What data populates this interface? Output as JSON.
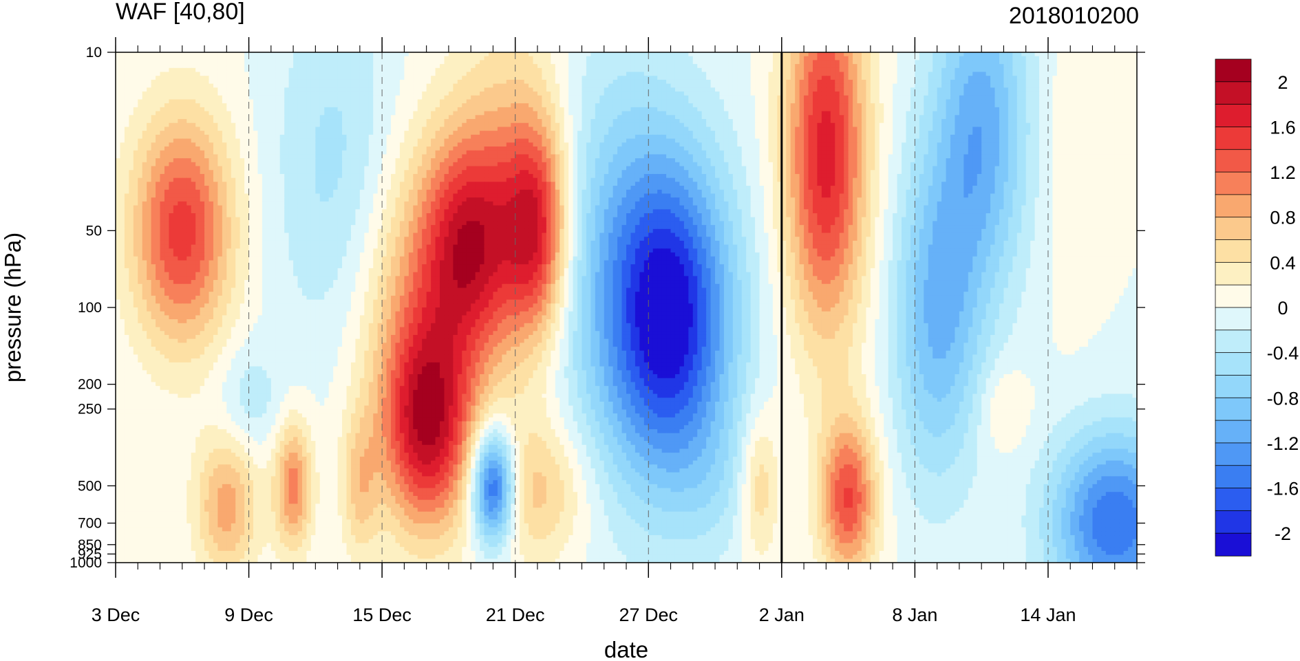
{
  "chart_data": {
    "type": "heatmap",
    "title": "WAF [40,80]",
    "subtitle_right": "2018010200",
    "xlabel": "date",
    "ylabel": "pressure (hPa)",
    "y_scale": "log",
    "y_reversed": true,
    "ylim": [
      1000,
      10
    ],
    "xlim": [
      "2017-12-03",
      "2018-01-18"
    ],
    "x_tick_labels": [
      "3 Dec",
      "9 Dec",
      "15 Dec",
      "21 Dec",
      "27 Dec",
      "2 Jan",
      "8 Jan",
      "14 Jan"
    ],
    "x_tick_dates": [
      "2017-12-03",
      "2017-12-09",
      "2017-12-15",
      "2017-12-21",
      "2017-12-27",
      "2018-01-02",
      "2018-01-08",
      "2018-01-14"
    ],
    "y_ticks": [
      10,
      50,
      100,
      200,
      250,
      500,
      700,
      850,
      925,
      1000
    ],
    "y_tick_labels": [
      "10",
      "50",
      "100",
      "200",
      "250",
      "500",
      "700",
      "850",
      "925",
      "1000"
    ],
    "vertical_marker_date": "2018-01-02",
    "colorbar": {
      "levels": [
        -2.2,
        -2.0,
        -1.8,
        -1.6,
        -1.4,
        -1.2,
        -1.0,
        -0.8,
        -0.6,
        -0.4,
        -0.2,
        0,
        0.2,
        0.4,
        0.6,
        0.8,
        1.0,
        1.2,
        1.4,
        1.6,
        1.8,
        2.0,
        2.2
      ],
      "colors": [
        "#1a0fd6",
        "#2036e6",
        "#2b5df0",
        "#3a7ef2",
        "#4f98f5",
        "#66b1f8",
        "#7ec8fa",
        "#93d7fa",
        "#a7e3fa",
        "#bfedfa",
        "#dff7fb",
        "#fffbe9",
        "#fdf0c2",
        "#fde0a4",
        "#fbc98c",
        "#f9a86f",
        "#f7805a",
        "#f25947",
        "#ec3a38",
        "#de1d2e",
        "#c41026",
        "#a5001f"
      ],
      "tick_labels": [
        "2",
        "1.6",
        "1.2",
        "0.8",
        "0.4",
        "0",
        "-0.4",
        "-0.8",
        "-1.2",
        "-1.6",
        "-2"
      ],
      "tick_values": [
        2.0,
        1.6,
        1.2,
        0.8,
        0.4,
        0,
        -0.4,
        -0.8,
        -1.2,
        -1.6,
        -2.0
      ]
    },
    "features": [
      {
        "date": "2017-12-06",
        "p": 50,
        "sx": 1.6,
        "sy": 0.32,
        "amp": 1.5
      },
      {
        "date": "2017-12-08",
        "p": 600,
        "sx": 1.0,
        "sy": 0.2,
        "amp": 0.9
      },
      {
        "date": "2017-12-11",
        "p": 500,
        "sx": 0.6,
        "sy": 0.18,
        "amp": 1.1
      },
      {
        "date": "2017-12-14",
        "p": 500,
        "sx": 0.6,
        "sy": 0.2,
        "amp": 0.6
      },
      {
        "date": "2017-12-17",
        "p": 300,
        "sx": 1.4,
        "sy": 0.28,
        "amp": 1.6
      },
      {
        "date": "2017-12-17",
        "p": 100,
        "sx": 2.2,
        "sy": 0.45,
        "amp": 0.9
      },
      {
        "date": "2017-12-19",
        "p": 55,
        "sx": 1.5,
        "sy": 0.3,
        "amp": 1.3
      },
      {
        "date": "2017-12-22",
        "p": 50,
        "sx": 1.0,
        "sy": 0.3,
        "amp": 1.4
      },
      {
        "date": "2017-12-21",
        "p": 30,
        "sx": 1.8,
        "sy": 0.5,
        "amp": 0.6
      },
      {
        "date": "2017-12-22",
        "p": 520,
        "sx": 1.6,
        "sy": 0.2,
        "amp": 0.7
      },
      {
        "date": "2017-12-20",
        "p": 500,
        "sx": 0.7,
        "sy": 0.16,
        "amp": -2.0
      },
      {
        "date": "2017-12-28",
        "p": 110,
        "sx": 2.0,
        "sy": 0.45,
        "amp": -2.1
      },
      {
        "date": "2017-12-25",
        "p": 60,
        "sx": 2.2,
        "sy": 0.6,
        "amp": -0.6
      },
      {
        "date": "2017-12-13",
        "p": 30,
        "sx": 2.0,
        "sy": 0.5,
        "amp": -0.5
      },
      {
        "date": "2018-01-04",
        "p": 25,
        "sx": 1.3,
        "sy": 0.5,
        "amp": 1.7
      },
      {
        "date": "2018-01-05",
        "p": 560,
        "sx": 0.9,
        "sy": 0.22,
        "amp": 1.4
      },
      {
        "date": "2018-01-01",
        "p": 500,
        "sx": 0.6,
        "sy": 0.2,
        "amp": 0.6
      },
      {
        "date": "2018-01-09",
        "p": 110,
        "sx": 1.4,
        "sy": 0.45,
        "amp": -1.0
      },
      {
        "date": "2018-01-11",
        "p": 20,
        "sx": 1.5,
        "sy": 0.45,
        "amp": -1.1
      },
      {
        "date": "2018-01-17",
        "p": 700,
        "sx": 2.0,
        "sy": 0.25,
        "amp": -1.6
      },
      {
        "date": "2018-01-15",
        "p": 25,
        "sx": 0.9,
        "sy": 0.45,
        "amp": 0.15
      },
      {
        "date": "2017-12-09",
        "p": 230,
        "sx": 1.0,
        "sy": 0.15,
        "amp": -0.35
      },
      {
        "date": "2018-01-12",
        "p": 250,
        "sx": 0.8,
        "sy": 0.12,
        "amp": 0.3
      },
      {
        "date": "2017-12-30",
        "p": 500,
        "sx": 1.2,
        "sy": 0.2,
        "amp": -0.2
      }
    ]
  }
}
